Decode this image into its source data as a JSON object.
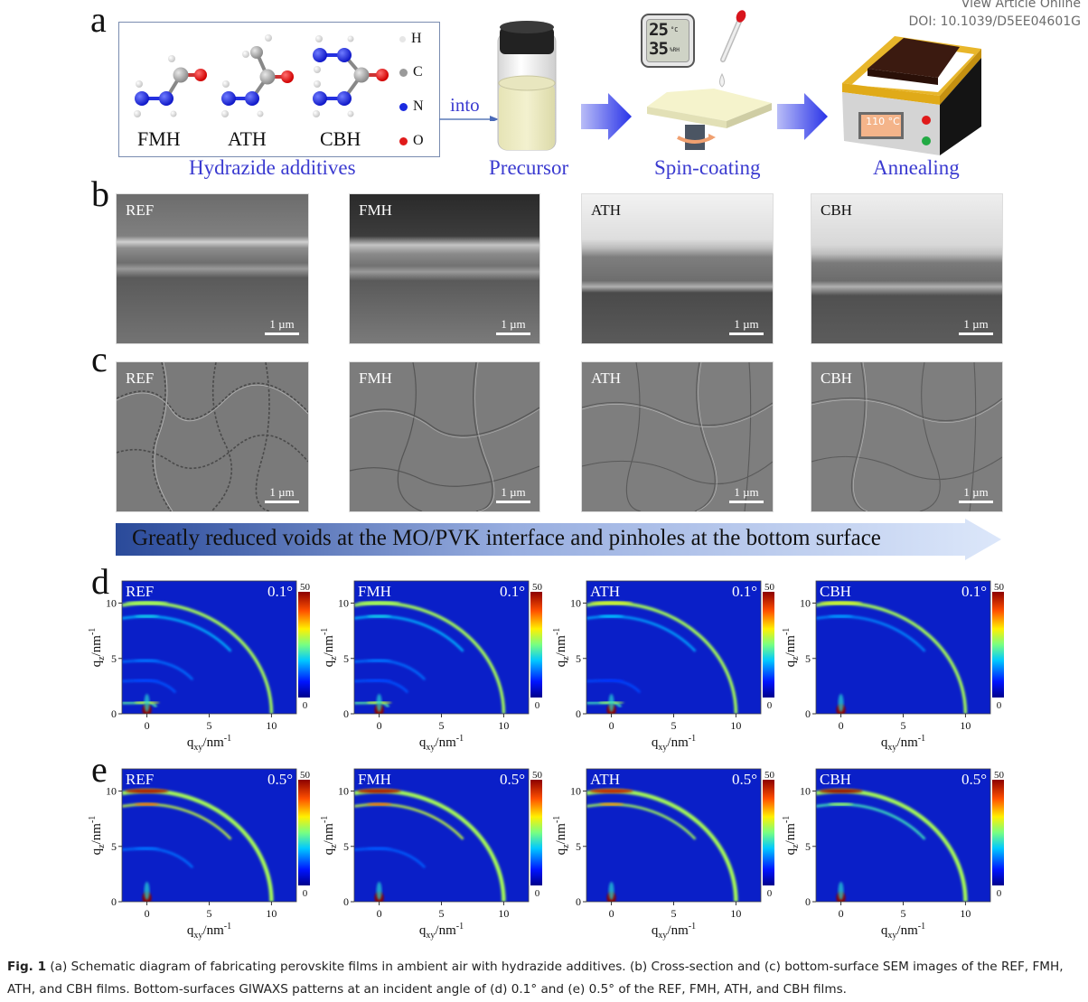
{
  "header": {
    "view_article": "View Article Online",
    "doi": "DOI: 10.1039/D5EE04601G"
  },
  "panel_a": {
    "letter": "a",
    "molecules": [
      "FMH",
      "ATH",
      "CBH"
    ],
    "legend": [
      {
        "symbol": "H",
        "color": "#e8e8e8"
      },
      {
        "symbol": "C",
        "color": "#9a9a9a"
      },
      {
        "symbol": "N",
        "color": "#1a2be0"
      },
      {
        "symbol": "O",
        "color": "#e01a1a"
      }
    ],
    "box_caption": "Hydrazide additives",
    "into_label": "into",
    "steps": [
      "Precursor",
      "Spin-coating",
      "Annealing"
    ],
    "hygrometer": {
      "temp": "25",
      "temp_unit": "°C",
      "rh": "35",
      "rh_unit": "%RH"
    },
    "hotplate_display": "110 °C"
  },
  "panel_b": {
    "letter": "b",
    "tiles": [
      {
        "label": "REF",
        "scale": "1 µm"
      },
      {
        "label": "FMH",
        "scale": "1 µm"
      },
      {
        "label": "ATH",
        "scale": "1 µm"
      },
      {
        "label": "CBH",
        "scale": "1 µm"
      }
    ]
  },
  "panel_c": {
    "letter": "c",
    "tiles": [
      {
        "label": "REF",
        "scale": "1 µm"
      },
      {
        "label": "FMH",
        "scale": "1 µm"
      },
      {
        "label": "ATH",
        "scale": "1 µm"
      },
      {
        "label": "CBH",
        "scale": "1 µm"
      }
    ]
  },
  "banner": {
    "text": "Greatly reduced voids at the MO/PVK interface and pinholes at the bottom surface"
  },
  "chart_data": [
    {
      "type": "heatmap",
      "panel": "d",
      "angle": "0.1°",
      "samples": [
        "REF",
        "FMH",
        "ATH",
        "CBH"
      ],
      "xlabel": "q_xy/nm^-1",
      "ylabel": "q_z/nm^-1",
      "xlim": [
        -2,
        12
      ],
      "ylim": [
        0,
        12
      ],
      "xticks": [
        0,
        5,
        10
      ],
      "yticks": [
        0,
        5,
        10
      ],
      "colorbar": {
        "min": 0,
        "max": 50
      },
      "rings_q": {
        "REF": [
          10,
          8.8,
          4.8,
          3.0,
          1.0
        ],
        "FMH": [
          10,
          8.8,
          4.8,
          3.0,
          1.0
        ],
        "ATH": [
          10,
          8.8,
          3.0,
          1.0
        ],
        "CBH": [
          10,
          8.8
        ]
      }
    },
    {
      "type": "heatmap",
      "panel": "e",
      "angle": "0.5°",
      "samples": [
        "REF",
        "FMH",
        "ATH",
        "CBH"
      ],
      "xlabel": "q_xy/nm^-1",
      "ylabel": "q_z/nm^-1",
      "xlim": [
        -2,
        12
      ],
      "ylim": [
        0,
        12
      ],
      "xticks": [
        0,
        5,
        10
      ],
      "yticks": [
        0,
        5,
        10
      ],
      "colorbar": {
        "min": 0,
        "max": 50
      },
      "rings_q": {
        "REF": [
          10,
          8.8,
          4.8
        ],
        "FMH": [
          10,
          8.8,
          4.8
        ],
        "ATH": [
          10,
          8.8
        ],
        "CBH": [
          10,
          8.8
        ]
      }
    }
  ],
  "axis_text": {
    "xlabel_main": "q",
    "xlabel_sub": "xy",
    "xlabel_unit": "/nm",
    "xlabel_sup": "-1",
    "ylabel_main": "q",
    "ylabel_sub": "z",
    "ylabel_unit": "/nm",
    "ylabel_sup": "-1",
    "tick0": "0",
    "tick5": "5",
    "tick10": "10",
    "cb_max": "50",
    "cb_min": "0"
  },
  "caption": {
    "label": "Fig. 1",
    "text": " (a) Schematic diagram of fabricating perovskite films in ambient air with hydrazide additives. (b) Cross-section and (c) bottom-surface SEM images of the REF, FMH, ATH, and CBH films. Bottom-surfaces GIWAXS patterns at an incident angle of (d) 0.1° and (e) 0.5° of the REF, FMH, ATH, and CBH films."
  }
}
